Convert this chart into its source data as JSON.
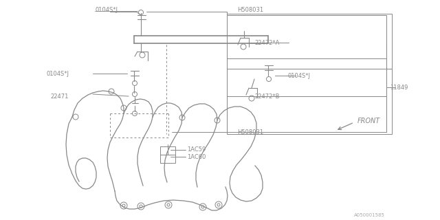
{
  "bg_color": "#ffffff",
  "line_color": "#888888",
  "text_color": "#888888",
  "fig_width": 6.4,
  "fig_height": 3.2,
  "dpi": 100,
  "part_number": "A050001585",
  "labels": {
    "0104S_J_top": "0104S*J",
    "H508031_top": "H508031",
    "22472A": "22472*A",
    "0104S_J_right": "0104S*J",
    "11849": "11849",
    "0104S_J_left": "0104S*J",
    "22472B": "22472*B",
    "22471": "22471",
    "H508031_bot": "H508031",
    "1AC59": "1AC59",
    "1AC60": "1AC60",
    "FRONT": "FRONT"
  },
  "font_size": 6.0
}
